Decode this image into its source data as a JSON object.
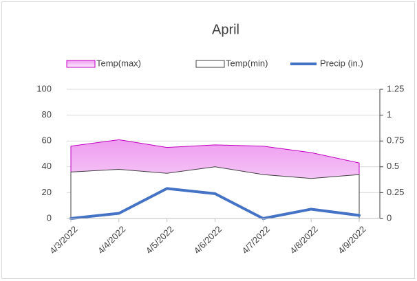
{
  "chart_data": {
    "type": "area",
    "title": "April",
    "categories": [
      "4/3/2022",
      "4/4/2022",
      "4/5/2022",
      "4/6/2022",
      "4/7/2022",
      "4/8/2022",
      "4/9/2022"
    ],
    "series": [
      {
        "name": "Temp(max)",
        "type": "area",
        "color": "#c000c0",
        "values": [
          56,
          61,
          55,
          57,
          56,
          51,
          43
        ]
      },
      {
        "name": "Temp(min)",
        "type": "area",
        "color": "#404040",
        "values": [
          36,
          38,
          35,
          40,
          34,
          31,
          34
        ]
      },
      {
        "name": "Precip (in.)",
        "type": "line",
        "axis": "y2",
        "color": "#4472c4",
        "values": [
          0,
          0.05,
          0.29,
          0.24,
          0,
          0.09,
          0.03
        ]
      }
    ],
    "ylim": [
      0,
      100
    ],
    "yticks": [
      0,
      20,
      40,
      60,
      80,
      100
    ],
    "y2lim": [
      0,
      1.25
    ],
    "y2ticks": [
      0,
      0.25,
      0.5,
      0.75,
      1,
      1.25
    ],
    "grid": true,
    "legend": "top"
  }
}
